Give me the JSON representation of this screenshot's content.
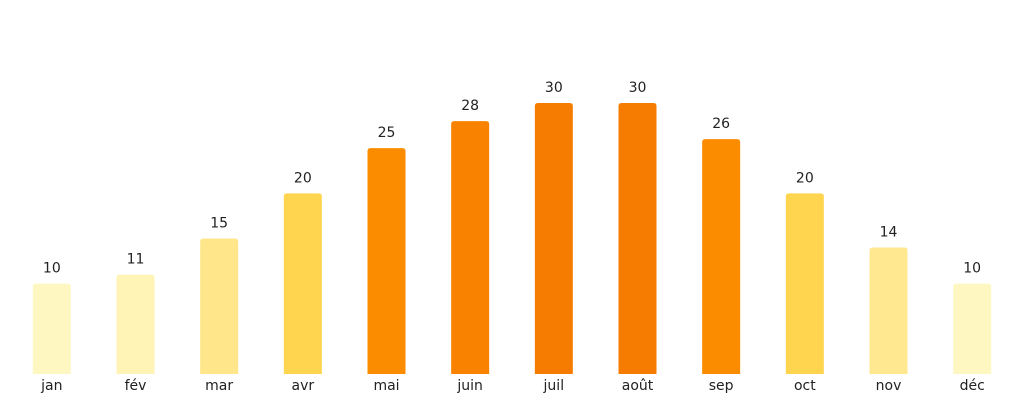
{
  "chart_data": {
    "type": "bar",
    "categories": [
      "jan",
      "fév",
      "mar",
      "avr",
      "mai",
      "juin",
      "juil",
      "août",
      "sep",
      "oct",
      "nov",
      "déc"
    ],
    "values": [
      10,
      11,
      15,
      20,
      25,
      28,
      30,
      30,
      26,
      20,
      14,
      10
    ],
    "colors": [
      "#fff7c2",
      "#fff3b5",
      "#ffe68a",
      "#ffd54f",
      "#fb8c00",
      "#f98200",
      "#f57c00",
      "#f57c00",
      "#fb8c00",
      "#ffd54f",
      "#ffe88f",
      "#fff7c2"
    ],
    "ylim": [
      0,
      30
    ]
  }
}
